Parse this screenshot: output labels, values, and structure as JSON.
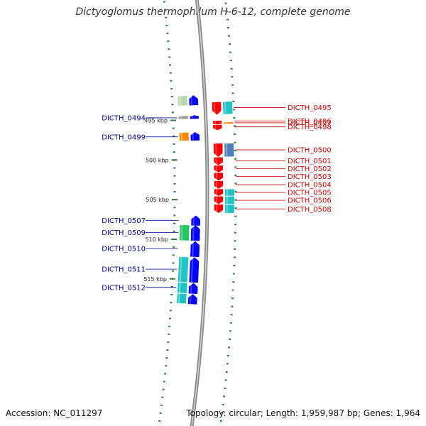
{
  "title": "Dictyoglomus thermophilum H-6-12, complete genome",
  "footer": {
    "accession": "Accession: NC_011297",
    "topology": "Topology: circular; Length: 1,959,987 bp; Genes: 1,964"
  },
  "colors": {
    "forward_gene": "#ff0000",
    "reverse_gene": "#0000ff",
    "forward_label": "#cc0000",
    "reverse_label": "#000099",
    "backbone": "#999999",
    "ticks": "#2e7d32",
    "cds_cyan": "#20c4c4",
    "cds_steel": "#4f7fb8",
    "cds_orange": "#ff8c00",
    "cds_green": "#22c55e",
    "cds_gray": "#a0a0a0",
    "cds_mint": "#b8d8b0",
    "cds_lavender": "#c8c8f0"
  },
  "scale_labels": [
    "495 kbp",
    "500 kbp",
    "505 kbp",
    "510 kbp",
    "515 kbp"
  ],
  "forward_genes": [
    {
      "locus": "DICTH_0495",
      "start_kbp": 493.0,
      "end_kbp": 494.5,
      "feature_color": "cds_cyan"
    },
    {
      "locus": "DICTH_0496",
      "start_kbp": 495.3,
      "end_kbp": 495.5,
      "feature_color": ""
    },
    {
      "locus": "DICTH_0497",
      "start_kbp": 495.5,
      "end_kbp": 495.7,
      "feature_color": "cds_orange"
    },
    {
      "locus": "DICTH_0498",
      "start_kbp": 495.8,
      "end_kbp": 496.4,
      "feature_color": ""
    },
    {
      "locus": "DICTH_0500",
      "start_kbp": 498.1,
      "end_kbp": 499.7,
      "feature_color": "cds_steel"
    },
    {
      "locus": "DICTH_0501",
      "start_kbp": 499.8,
      "end_kbp": 500.7,
      "feature_color": ""
    },
    {
      "locus": "DICTH_0502",
      "start_kbp": 500.8,
      "end_kbp": 501.6,
      "feature_color": ""
    },
    {
      "locus": "DICTH_0503",
      "start_kbp": 501.7,
      "end_kbp": 502.6,
      "feature_color": ""
    },
    {
      "locus": "DICTH_0504",
      "start_kbp": 502.7,
      "end_kbp": 503.6,
      "feature_color": ""
    },
    {
      "locus": "DICTH_0505",
      "start_kbp": 503.7,
      "end_kbp": 504.5,
      "feature_color": "cds_cyan"
    },
    {
      "locus": "DICTH_0506",
      "start_kbp": 504.6,
      "end_kbp": 505.5,
      "feature_color": "cds_cyan"
    },
    {
      "locus": "DICTH_0508",
      "start_kbp": 505.6,
      "end_kbp": 506.6,
      "feature_color": "cds_cyan"
    }
  ],
  "reverse_genes": [
    {
      "locus": "",
      "start_kbp": 492.0,
      "end_kbp": 493.2,
      "feature_color": "cds_mint"
    },
    {
      "locus": "DICTH_0494",
      "start_kbp": 494.5,
      "end_kbp": 494.9,
      "feature_color": "cds_gray"
    },
    {
      "locus": "DICTH_0499",
      "start_kbp": 496.6,
      "end_kbp": 497.6,
      "feature_color": "cds_orange"
    },
    {
      "locus": "DICTH_0507",
      "start_kbp": 507.0,
      "end_kbp": 508.2,
      "feature_color": ""
    },
    {
      "locus": "DICTH_0509",
      "start_kbp": 508.2,
      "end_kbp": 510.1,
      "feature_color": "cds_green"
    },
    {
      "locus": "DICTH_0510",
      "start_kbp": 510.2,
      "end_kbp": 512.1,
      "feature_color": ""
    },
    {
      "locus": "DICTH_0511",
      "start_kbp": 512.2,
      "end_kbp": 515.3,
      "feature_color": "cds_cyan"
    },
    {
      "locus": "DICTH_0512",
      "start_kbp": 515.4,
      "end_kbp": 516.7,
      "feature_color": "cds_cyan"
    },
    {
      "locus": "",
      "start_kbp": 516.8,
      "end_kbp": 518.0,
      "feature_color": "cds_cyan"
    }
  ]
}
